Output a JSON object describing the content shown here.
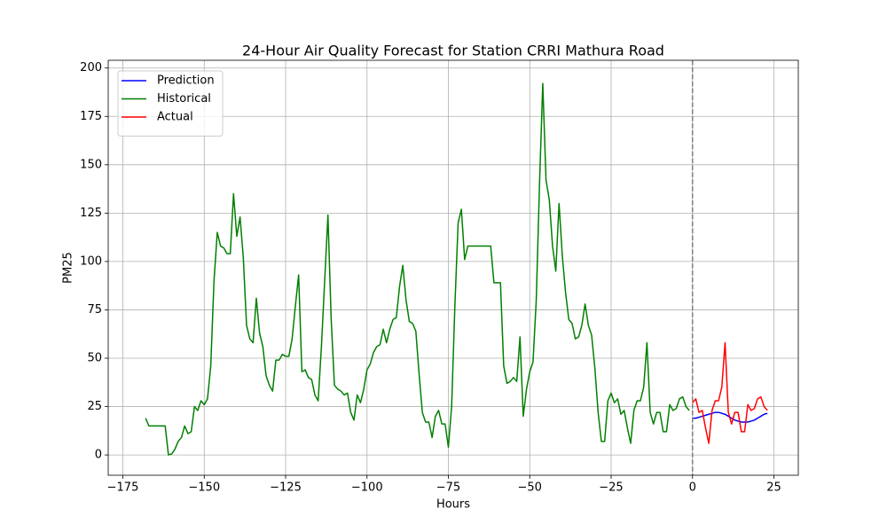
{
  "chart_data": {
    "type": "line",
    "title": "24-Hour Air Quality Forecast for Station CRRI Mathura Road",
    "xlabel": "Hours",
    "ylabel": "PM25",
    "xlim": [
      -179.5,
      32.5
    ],
    "ylim": [
      -10.5,
      204
    ],
    "xticks": [
      {
        "value": -175,
        "label": "−175"
      },
      {
        "value": -150,
        "label": "−150"
      },
      {
        "value": -125,
        "label": "−125"
      },
      {
        "value": -100,
        "label": "−100"
      },
      {
        "value": -75,
        "label": "−75"
      },
      {
        "value": -50,
        "label": "−50"
      },
      {
        "value": -25,
        "label": "−25"
      },
      0,
      25
    ],
    "yticks": [
      0,
      25,
      50,
      75,
      100,
      125,
      150,
      175,
      200
    ],
    "grid": true,
    "legend": "upper left",
    "vlines": [
      0
    ],
    "series": [
      {
        "name": "Prediction",
        "color": "#0000ff",
        "x": [
          0,
          1,
          2,
          3,
          4,
          5,
          6,
          7,
          8,
          9,
          10,
          11,
          12,
          13,
          14,
          15,
          16,
          17,
          18,
          19,
          20,
          21,
          22,
          23
        ],
        "values": [
          19,
          19,
          19.5,
          20,
          20.5,
          21,
          21.5,
          22,
          22,
          21.5,
          21,
          20,
          19,
          18,
          17.5,
          17,
          17,
          17,
          17.5,
          18,
          19,
          20,
          21,
          21.5
        ]
      },
      {
        "name": "Historical",
        "color": "#008000",
        "x": [
          -168,
          -167,
          -166,
          -165,
          -164,
          -163,
          -162,
          -161,
          -160,
          -159,
          -158,
          -157,
          -156,
          -155,
          -154,
          -153,
          -152,
          -151,
          -150,
          -149,
          -148,
          -147,
          -146,
          -145,
          -144,
          -143,
          -142,
          -141,
          -140,
          -139,
          -138,
          -137,
          -136,
          -135,
          -134,
          -133,
          -132,
          -131,
          -130,
          -129,
          -128,
          -127,
          -126,
          -125,
          -124,
          -123,
          -122,
          -121,
          -120,
          -119,
          -118,
          -117,
          -116,
          -115,
          -114,
          -113,
          -112,
          -111,
          -110,
          -109,
          -108,
          -107,
          -106,
          -105,
          -104,
          -103,
          -102,
          -101,
          -100,
          -99,
          -98,
          -97,
          -96,
          -95,
          -94,
          -93,
          -92,
          -91,
          -90,
          -89,
          -88,
          -87,
          -86,
          -85,
          -84,
          -83,
          -82,
          -81,
          -80,
          -79,
          -78,
          -77,
          -76,
          -75,
          -74,
          -73,
          -72,
          -71,
          -70,
          -69,
          -68,
          -67,
          -66,
          -65,
          -64,
          -63,
          -62,
          -61,
          -60,
          -59,
          -58,
          -57,
          -56,
          -55,
          -54,
          -53,
          -52,
          -51,
          -50,
          -49,
          -48,
          -47,
          -46,
          -45,
          -44,
          -43,
          -42,
          -41,
          -40,
          -39,
          -38,
          -37,
          -36,
          -35,
          -34,
          -33,
          -32,
          -31,
          -30,
          -29,
          -28,
          -27,
          -26,
          -25,
          -24,
          -23,
          -22,
          -21,
          -20,
          -19,
          -18,
          -17,
          -16,
          -15,
          -14,
          -13,
          -12,
          -11,
          -10,
          -9,
          -8,
          -7,
          -6,
          -5,
          -4,
          -3,
          -2,
          -1
        ],
        "values": [
          19,
          15,
          15,
          15,
          15,
          15,
          15,
          0,
          0.5,
          3,
          7,
          9,
          15,
          11,
          12,
          25,
          23,
          28,
          26,
          29,
          46,
          90,
          115,
          108,
          107,
          104,
          104,
          135,
          113,
          123,
          102,
          67,
          60,
          58,
          81,
          63,
          56,
          41,
          36,
          33,
          49,
          49,
          52,
          51,
          51,
          60,
          77,
          93,
          43,
          44,
          40,
          39,
          31,
          28,
          56,
          90,
          124,
          70,
          36,
          34,
          33,
          31,
          32,
          22,
          18,
          31,
          27,
          34,
          44,
          47,
          53,
          56,
          57,
          65,
          58,
          65,
          70,
          71,
          87,
          98,
          80,
          69,
          68,
          64,
          42,
          22,
          17,
          17,
          9,
          20,
          23,
          16,
          16,
          4,
          25,
          77,
          120,
          127,
          101,
          108,
          108,
          108,
          108,
          108,
          108,
          108,
          108,
          89,
          89,
          89,
          46,
          37,
          38,
          40,
          38,
          61,
          20,
          34,
          43,
          48,
          80,
          140,
          192,
          142,
          132,
          108,
          95,
          130,
          103,
          84,
          70,
          68,
          60,
          61,
          67,
          78,
          67,
          62,
          45,
          22,
          7,
          7,
          28,
          32,
          27,
          29,
          21,
          23,
          14,
          6,
          23,
          28,
          28,
          35,
          58,
          22,
          16,
          22,
          22,
          12,
          12,
          26,
          23,
          24,
          29,
          30,
          25,
          23
        ]
      },
      {
        "name": "Actual",
        "color": "#ff0000",
        "x": [
          0,
          1,
          2,
          3,
          4,
          5,
          6,
          7,
          8,
          9,
          10,
          11,
          12,
          13,
          14,
          15,
          16,
          17,
          18,
          19,
          20,
          21,
          22,
          23
        ],
        "values": [
          27,
          29,
          22,
          23,
          14,
          6,
          23,
          28,
          28,
          35,
          58,
          22,
          16,
          22,
          22,
          12,
          12,
          26,
          23,
          24,
          29,
          30,
          25,
          23
        ]
      }
    ]
  }
}
